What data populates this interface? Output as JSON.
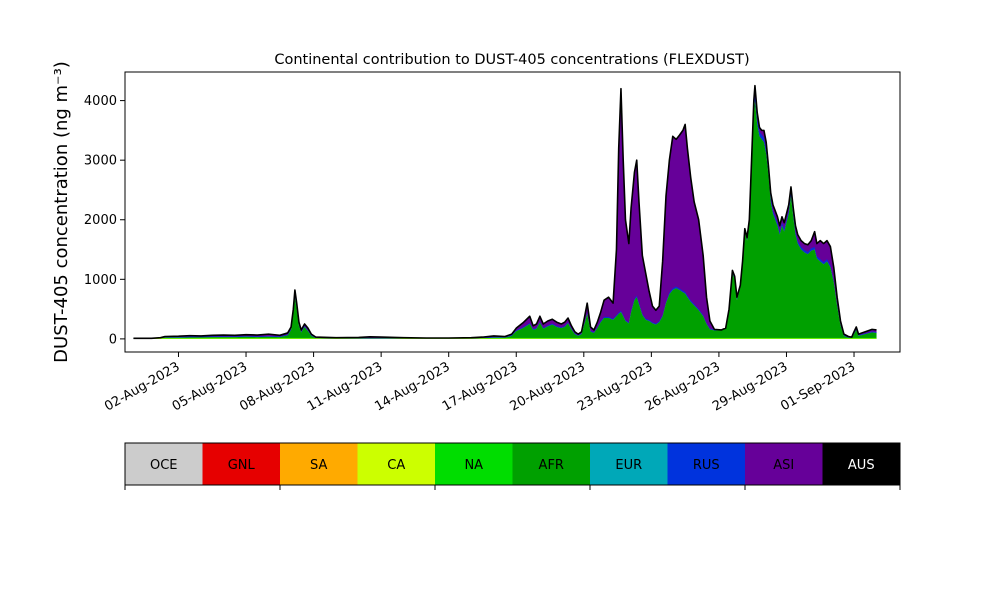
{
  "chart_data": {
    "type": "area",
    "stacked": true,
    "title": "Continental contribution to DUST-405 concentrations (FLEXDUST)",
    "ylabel": "DUST-405 concentration (ng m⁻³)",
    "xlabel": "",
    "x_start": "2023-07-31",
    "x_end": "2023-09-01",
    "xlim": [
      "2023-07-30T15:00",
      "2023-09-03T01:00"
    ],
    "ylim": [
      -220,
      4480
    ],
    "grid": false,
    "x_ticks": [
      {
        "date": "2023-08-02",
        "label": "02-Aug-2023"
      },
      {
        "date": "2023-08-05",
        "label": "05-Aug-2023"
      },
      {
        "date": "2023-08-08",
        "label": "08-Aug-2023"
      },
      {
        "date": "2023-08-11",
        "label": "11-Aug-2023"
      },
      {
        "date": "2023-08-14",
        "label": "14-Aug-2023"
      },
      {
        "date": "2023-08-17",
        "label": "17-Aug-2023"
      },
      {
        "date": "2023-08-20",
        "label": "20-Aug-2023"
      },
      {
        "date": "2023-08-23",
        "label": "23-Aug-2023"
      },
      {
        "date": "2023-08-26",
        "label": "26-Aug-2023"
      },
      {
        "date": "2023-08-29",
        "label": "29-Aug-2023"
      },
      {
        "date": "2023-09-01",
        "label": "01-Sep-2023"
      }
    ],
    "y_ticks": [
      0,
      1000,
      2000,
      3000,
      4000
    ],
    "total": [
      [
        0.0,
        10
      ],
      [
        0.8,
        10
      ],
      [
        1.2,
        20
      ],
      [
        1.4,
        40
      ],
      [
        2.0,
        45
      ],
      [
        2.5,
        55
      ],
      [
        3.0,
        50
      ],
      [
        3.5,
        60
      ],
      [
        4.0,
        65
      ],
      [
        4.5,
        60
      ],
      [
        5.0,
        70
      ],
      [
        5.5,
        65
      ],
      [
        6.0,
        80
      ],
      [
        6.5,
        60
      ],
      [
        6.85,
        100
      ],
      [
        7.0,
        200
      ],
      [
        7.1,
        500
      ],
      [
        7.17,
        820
      ],
      [
        7.25,
        600
      ],
      [
        7.35,
        280
      ],
      [
        7.45,
        150
      ],
      [
        7.6,
        250
      ],
      [
        7.75,
        180
      ],
      [
        7.9,
        80
      ],
      [
        8.1,
        30
      ],
      [
        9.0,
        20
      ],
      [
        10.0,
        25
      ],
      [
        10.5,
        35
      ],
      [
        11.0,
        30
      ],
      [
        12.0,
        20
      ],
      [
        13.0,
        15
      ],
      [
        14.0,
        15
      ],
      [
        15.0,
        20
      ],
      [
        15.5,
        30
      ],
      [
        16.0,
        50
      ],
      [
        16.5,
        40
      ],
      [
        16.8,
        80
      ],
      [
        17.0,
        180
      ],
      [
        17.3,
        270
      ],
      [
        17.6,
        380
      ],
      [
        17.75,
        220
      ],
      [
        17.9,
        250
      ],
      [
        18.05,
        380
      ],
      [
        18.2,
        250
      ],
      [
        18.4,
        300
      ],
      [
        18.6,
        330
      ],
      [
        18.8,
        280
      ],
      [
        19.0,
        250
      ],
      [
        19.15,
        280
      ],
      [
        19.3,
        350
      ],
      [
        19.45,
        220
      ],
      [
        19.6,
        120
      ],
      [
        19.75,
        80
      ],
      [
        19.9,
        120
      ],
      [
        20.05,
        400
      ],
      [
        20.15,
        600
      ],
      [
        20.3,
        200
      ],
      [
        20.45,
        150
      ],
      [
        20.6,
        280
      ],
      [
        20.75,
        450
      ],
      [
        20.9,
        650
      ],
      [
        21.1,
        700
      ],
      [
        21.3,
        600
      ],
      [
        21.45,
        1500
      ],
      [
        21.55,
        3200
      ],
      [
        21.65,
        4200
      ],
      [
        21.75,
        3000
      ],
      [
        21.85,
        2000
      ],
      [
        22.0,
        1600
      ],
      [
        22.1,
        2200
      ],
      [
        22.25,
        2800
      ],
      [
        22.35,
        3000
      ],
      [
        22.45,
        2300
      ],
      [
        22.6,
        1400
      ],
      [
        22.75,
        1100
      ],
      [
        22.9,
        800
      ],
      [
        23.05,
        550
      ],
      [
        23.2,
        480
      ],
      [
        23.35,
        550
      ],
      [
        23.5,
        1300
      ],
      [
        23.65,
        2400
      ],
      [
        23.8,
        3000
      ],
      [
        23.95,
        3400
      ],
      [
        24.1,
        3350
      ],
      [
        24.25,
        3420
      ],
      [
        24.4,
        3500
      ],
      [
        24.5,
        3600
      ],
      [
        24.6,
        3200
      ],
      [
        24.75,
        2700
      ],
      [
        24.9,
        2300
      ],
      [
        25.1,
        2000
      ],
      [
        25.3,
        1400
      ],
      [
        25.45,
        700
      ],
      [
        25.6,
        300
      ],
      [
        25.8,
        160
      ],
      [
        26.1,
        150
      ],
      [
        26.3,
        180
      ],
      [
        26.45,
        500
      ],
      [
        26.6,
        1150
      ],
      [
        26.7,
        1050
      ],
      [
        26.8,
        700
      ],
      [
        26.95,
        900
      ],
      [
        27.05,
        1300
      ],
      [
        27.15,
        1850
      ],
      [
        27.25,
        1700
      ],
      [
        27.35,
        2000
      ],
      [
        27.45,
        3000
      ],
      [
        27.55,
        4000
      ],
      [
        27.6,
        4250
      ],
      [
        27.7,
        3800
      ],
      [
        27.8,
        3550
      ],
      [
        27.9,
        3500
      ],
      [
        28.0,
        3500
      ],
      [
        28.1,
        3300
      ],
      [
        28.2,
        2900
      ],
      [
        28.3,
        2450
      ],
      [
        28.4,
        2250
      ],
      [
        28.5,
        2150
      ],
      [
        28.6,
        2050
      ],
      [
        28.7,
        1900
      ],
      [
        28.8,
        2050
      ],
      [
        28.9,
        1950
      ],
      [
        29.0,
        2100
      ],
      [
        29.1,
        2250
      ],
      [
        29.2,
        2550
      ],
      [
        29.3,
        2200
      ],
      [
        29.4,
        1900
      ],
      [
        29.5,
        1750
      ],
      [
        29.65,
        1650
      ],
      [
        29.8,
        1600
      ],
      [
        29.95,
        1580
      ],
      [
        30.1,
        1650
      ],
      [
        30.25,
        1800
      ],
      [
        30.35,
        1600
      ],
      [
        30.5,
        1650
      ],
      [
        30.65,
        1600
      ],
      [
        30.8,
        1650
      ],
      [
        30.95,
        1550
      ],
      [
        31.1,
        1200
      ],
      [
        31.25,
        700
      ],
      [
        31.4,
        300
      ],
      [
        31.55,
        80
      ],
      [
        31.75,
        40
      ],
      [
        31.9,
        30
      ],
      [
        32.0,
        120
      ],
      [
        32.1,
        200
      ],
      [
        32.2,
        80
      ],
      [
        32.5,
        120
      ],
      [
        32.8,
        160
      ],
      [
        33.0,
        150
      ]
    ],
    "afr": [
      [
        0.0,
        5
      ],
      [
        0.8,
        5
      ],
      [
        1.2,
        10
      ],
      [
        1.4,
        20
      ],
      [
        2.0,
        20
      ],
      [
        2.5,
        25
      ],
      [
        3.0,
        25
      ],
      [
        3.5,
        30
      ],
      [
        4.0,
        30
      ],
      [
        4.5,
        30
      ],
      [
        5.0,
        35
      ],
      [
        5.5,
        30
      ],
      [
        6.0,
        35
      ],
      [
        6.5,
        30
      ],
      [
        6.85,
        60
      ],
      [
        7.0,
        150
      ],
      [
        7.1,
        420
      ],
      [
        7.17,
        700
      ],
      [
        7.25,
        500
      ],
      [
        7.35,
        220
      ],
      [
        7.45,
        110
      ],
      [
        7.6,
        200
      ],
      [
        7.75,
        130
      ],
      [
        7.9,
        50
      ],
      [
        8.1,
        10
      ],
      [
        9.0,
        5
      ],
      [
        10.0,
        5
      ],
      [
        10.5,
        5
      ],
      [
        11.0,
        5
      ],
      [
        12.0,
        5
      ],
      [
        13.0,
        5
      ],
      [
        14.0,
        5
      ],
      [
        15.0,
        5
      ],
      [
        15.5,
        10
      ],
      [
        16.0,
        20
      ],
      [
        16.5,
        20
      ],
      [
        16.8,
        50
      ],
      [
        17.0,
        130
      ],
      [
        17.3,
        180
      ],
      [
        17.6,
        250
      ],
      [
        17.75,
        150
      ],
      [
        17.9,
        170
      ],
      [
        18.05,
        270
      ],
      [
        18.2,
        170
      ],
      [
        18.4,
        210
      ],
      [
        18.6,
        240
      ],
      [
        18.8,
        200
      ],
      [
        19.0,
        180
      ],
      [
        19.15,
        200
      ],
      [
        19.3,
        260
      ],
      [
        19.45,
        160
      ],
      [
        19.6,
        80
      ],
      [
        19.75,
        50
      ],
      [
        19.9,
        80
      ],
      [
        20.05,
        280
      ],
      [
        20.15,
        420
      ],
      [
        20.3,
        120
      ],
      [
        20.45,
        100
      ],
      [
        20.6,
        180
      ],
      [
        20.75,
        280
      ],
      [
        20.9,
        350
      ],
      [
        21.1,
        350
      ],
      [
        21.3,
        320
      ],
      [
        21.45,
        380
      ],
      [
        21.55,
        420
      ],
      [
        21.65,
        450
      ],
      [
        21.75,
        380
      ],
      [
        21.85,
        300
      ],
      [
        22.0,
        260
      ],
      [
        22.1,
        450
      ],
      [
        22.25,
        650
      ],
      [
        22.35,
        700
      ],
      [
        22.45,
        580
      ],
      [
        22.6,
        400
      ],
      [
        22.75,
        320
      ],
      [
        22.9,
        300
      ],
      [
        23.05,
        260
      ],
      [
        23.2,
        240
      ],
      [
        23.35,
        280
      ],
      [
        23.5,
        380
      ],
      [
        23.65,
        600
      ],
      [
        23.8,
        750
      ],
      [
        23.95,
        820
      ],
      [
        24.1,
        850
      ],
      [
        24.25,
        820
      ],
      [
        24.4,
        780
      ],
      [
        24.5,
        760
      ],
      [
        24.6,
        700
      ],
      [
        24.75,
        620
      ],
      [
        24.9,
        560
      ],
      [
        25.1,
        480
      ],
      [
        25.3,
        380
      ],
      [
        25.45,
        250
      ],
      [
        25.6,
        160
      ],
      [
        25.8,
        140
      ],
      [
        26.1,
        140
      ],
      [
        26.3,
        170
      ],
      [
        26.45,
        480
      ],
      [
        26.6,
        1100
      ],
      [
        26.7,
        1000
      ],
      [
        26.8,
        650
      ],
      [
        26.95,
        860
      ],
      [
        27.05,
        1250
      ],
      [
        27.15,
        1800
      ],
      [
        27.25,
        1650
      ],
      [
        27.35,
        1950
      ],
      [
        27.45,
        2900
      ],
      [
        27.55,
        3800
      ],
      [
        27.6,
        4000
      ],
      [
        27.7,
        3600
      ],
      [
        27.8,
        3400
      ],
      [
        27.9,
        3350
      ],
      [
        28.0,
        3300
      ],
      [
        28.1,
        3100
      ],
      [
        28.2,
        2750
      ],
      [
        28.3,
        2300
      ],
      [
        28.4,
        2100
      ],
      [
        28.5,
        2000
      ],
      [
        28.6,
        1900
      ],
      [
        28.7,
        1750
      ],
      [
        28.8,
        1900
      ],
      [
        28.9,
        1800
      ],
      [
        29.0,
        1950
      ],
      [
        29.1,
        2100
      ],
      [
        29.2,
        2400
      ],
      [
        29.3,
        2050
      ],
      [
        29.4,
        1750
      ],
      [
        29.5,
        1600
      ],
      [
        29.65,
        1500
      ],
      [
        29.8,
        1450
      ],
      [
        29.95,
        1420
      ],
      [
        30.1,
        1480
      ],
      [
        30.25,
        1500
      ],
      [
        30.35,
        1350
      ],
      [
        30.5,
        1300
      ],
      [
        30.65,
        1250
      ],
      [
        30.8,
        1300
      ],
      [
        30.95,
        1200
      ],
      [
        31.1,
        950
      ],
      [
        31.25,
        550
      ],
      [
        31.4,
        220
      ],
      [
        31.55,
        50
      ],
      [
        31.75,
        20
      ],
      [
        31.9,
        15
      ],
      [
        32.0,
        80
      ],
      [
        32.1,
        150
      ],
      [
        32.2,
        50
      ],
      [
        32.5,
        80
      ],
      [
        32.8,
        110
      ],
      [
        33.0,
        100
      ]
    ],
    "legend": [
      {
        "label": "OCE",
        "color": "#cccccc"
      },
      {
        "label": "GNL",
        "color": "#e60000"
      },
      {
        "label": "SA",
        "color": "#ffaa00"
      },
      {
        "label": "CA",
        "color": "#ccff00"
      },
      {
        "label": "NA",
        "color": "#00dd00"
      },
      {
        "label": "AFR",
        "color": "#00a000"
      },
      {
        "label": "EUR",
        "color": "#00a8b8"
      },
      {
        "label": "RUS",
        "color": "#0033dd"
      },
      {
        "label": "ASI",
        "color": "#660099"
      },
      {
        "label": "AUS",
        "color": "#000000"
      }
    ]
  }
}
